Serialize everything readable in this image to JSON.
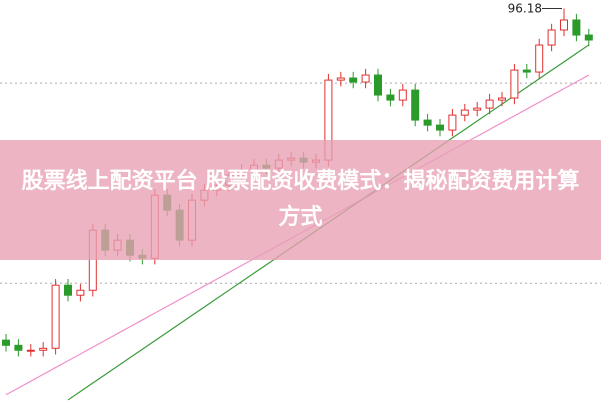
{
  "chart_data": {
    "type": "candlestick",
    "title": "股票线上配资平台 股票配资收费模式：揭秘配资费用计算方式",
    "ylim": [
      58,
      97
    ],
    "gridlines": [
      88.94,
      69.52
    ],
    "up_color": "#e03030",
    "down_color": "#2a9a2a",
    "open": [
      64.0,
      63.5,
      63.02,
      63.02,
      63.21,
      69.33,
      68.36,
      68.84,
      74.67,
      72.73,
      73.7,
      72.24,
      71.95,
      78.07,
      76.61,
      73.7,
      77.58,
      78.55,
      79.04,
      80.01,
      80.5,
      80.98,
      80.69,
      81.47,
      81.66,
      81.27,
      81.47,
      89.23,
      89.43,
      89.04,
      89.72,
      87.78,
      87.29,
      88.26,
      85.35,
      84.86,
      84.38,
      85.83,
      86.32,
      86.51,
      87.29,
      87.49,
      90.2,
      90.01,
      92.63,
      94.09,
      95.06,
      93.6
    ],
    "high": [
      64.6,
      64.1,
      63.62,
      63.81,
      69.93,
      69.93,
      69.44,
      75.27,
      75.27,
      74.3,
      74.3,
      72.84,
      78.67,
      78.67,
      77.21,
      78.18,
      79.15,
      79.64,
      80.61,
      81.1,
      81.58,
      81.58,
      82.07,
      82.26,
      82.26,
      82.07,
      89.83,
      90.03,
      90.03,
      90.32,
      90.32,
      88.38,
      88.86,
      88.86,
      85.95,
      85.46,
      86.43,
      86.92,
      87.11,
      87.89,
      88.09,
      90.8,
      90.8,
      93.23,
      94.69,
      96.18,
      95.66,
      94.2
    ],
    "low": [
      62.9,
      62.42,
      62.42,
      62.42,
      62.61,
      67.76,
      67.76,
      68.24,
      72.13,
      72.13,
      71.64,
      71.35,
      71.35,
      76.01,
      73.1,
      73.1,
      76.98,
      77.95,
      78.44,
      79.41,
      79.9,
      80.09,
      80.09,
      80.87,
      80.67,
      80.67,
      80.87,
      88.63,
      88.44,
      88.44,
      87.18,
      86.69,
      86.69,
      84.75,
      84.26,
      83.78,
      83.78,
      85.23,
      85.72,
      85.91,
      86.69,
      86.89,
      89.41,
      89.41,
      92.03,
      93.49,
      93.0,
      92.52
    ],
    "close": [
      63.5,
      63.02,
      63.02,
      63.21,
      69.33,
      68.36,
      68.84,
      74.67,
      72.73,
      73.7,
      72.24,
      71.95,
      78.07,
      76.61,
      73.7,
      77.58,
      78.55,
      79.04,
      80.01,
      80.5,
      80.98,
      80.69,
      81.47,
      81.66,
      81.27,
      81.47,
      89.23,
      89.43,
      89.04,
      89.72,
      87.78,
      87.29,
      88.26,
      85.35,
      84.86,
      84.38,
      85.83,
      86.32,
      86.51,
      87.29,
      87.49,
      90.2,
      90.01,
      92.63,
      94.09,
      95.06,
      93.6,
      93.12
    ],
    "series": [
      {
        "color": "#f090c8",
        "values": [
          58.7,
          59.36,
          60.02,
          60.68,
          61.34,
          62.0,
          62.66,
          63.32,
          63.98,
          64.64,
          65.3,
          65.96,
          66.62,
          67.28,
          67.94,
          68.6,
          69.26,
          69.92,
          70.58,
          71.24,
          71.9,
          72.56,
          73.22,
          73.88,
          74.54,
          75.2,
          75.86,
          76.52,
          77.18,
          77.84,
          78.5,
          79.16,
          79.82,
          80.48,
          81.14,
          81.8,
          82.46,
          83.12,
          83.78,
          84.44,
          85.1,
          85.76,
          86.42,
          87.08,
          87.74,
          88.4,
          89.06,
          89.72
        ]
      },
      {
        "color": "#3a9a3a",
        "values": [
          null,
          null,
          null,
          null,
          null,
          58.2,
          59.02,
          59.84,
          60.66,
          61.48,
          62.3,
          63.12,
          63.94,
          64.76,
          65.58,
          66.4,
          67.22,
          68.04,
          68.86,
          69.68,
          70.5,
          71.32,
          72.14,
          72.96,
          73.78,
          74.6,
          75.42,
          76.24,
          77.06,
          77.88,
          78.7,
          79.52,
          80.34,
          81.16,
          81.98,
          82.8,
          83.62,
          84.44,
          85.26,
          86.08,
          86.9,
          87.72,
          88.54,
          89.36,
          90.18,
          91.0,
          91.82,
          92.64
        ]
      }
    ]
  }
}
